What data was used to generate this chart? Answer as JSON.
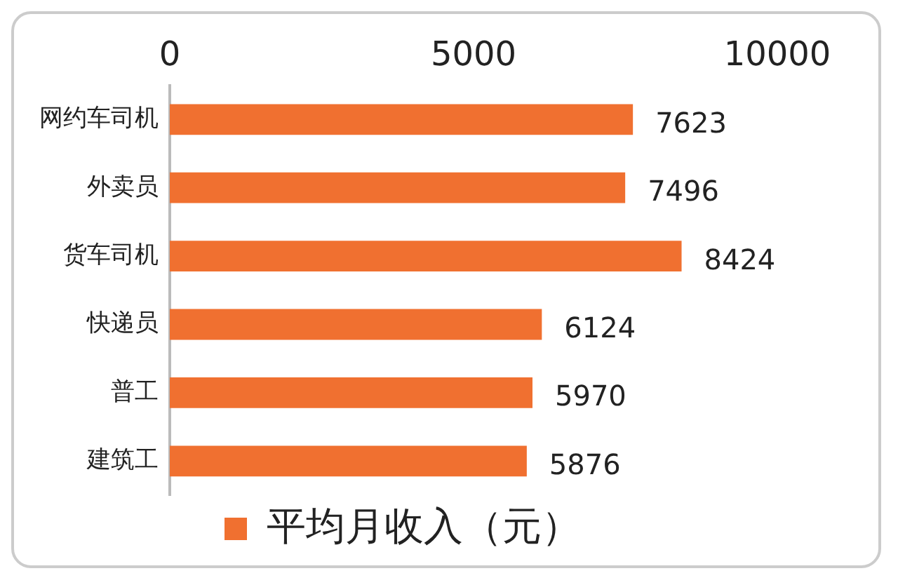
{
  "chart_data": {
    "type": "bar",
    "orientation": "horizontal",
    "categories": [
      "网约车司机",
      "外卖员",
      "货车司机",
      "快递员",
      "普工",
      "建筑工"
    ],
    "series": [
      {
        "name": "平均月收入（元）",
        "color": "#f07030",
        "values": [
          7623,
          7496,
          8424,
          6124,
          5970,
          5876
        ]
      }
    ],
    "xlim": [
      0,
      10000
    ],
    "xticks": [
      0,
      5000,
      10000
    ],
    "grid": false,
    "legend": "bottom",
    "data_labels": true
  }
}
